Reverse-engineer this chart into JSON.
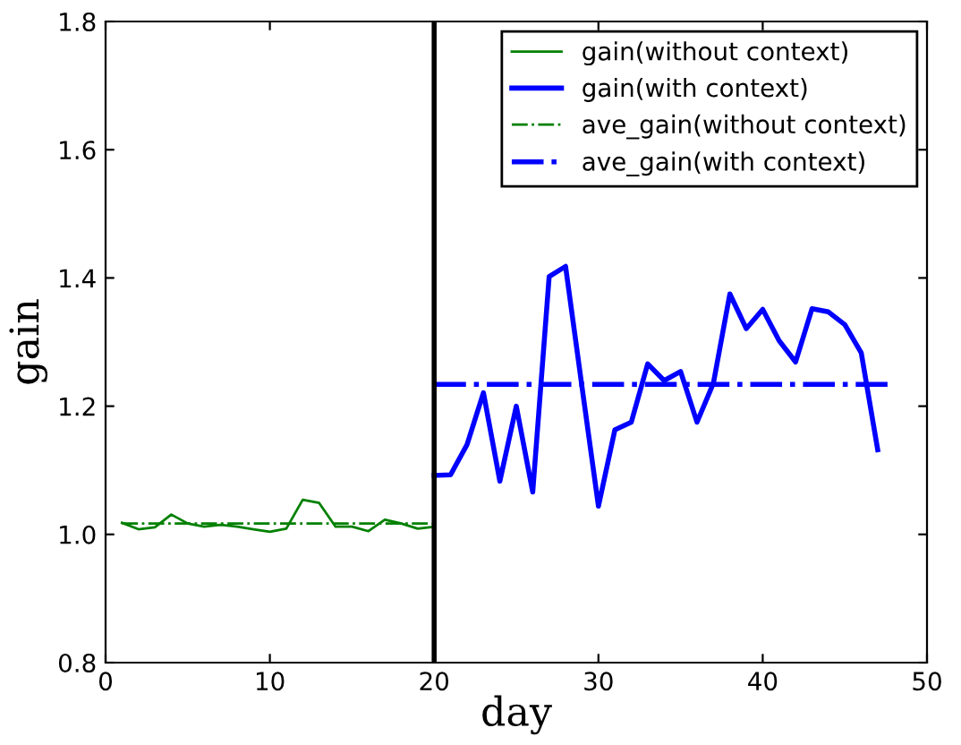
{
  "chart_data": {
    "type": "line",
    "xlabel": "day",
    "ylabel": "gain",
    "xlim": [
      0,
      50
    ],
    "xticks": [
      0,
      10,
      20,
      30,
      40,
      50
    ],
    "ylim": [
      0.8,
      1.8
    ],
    "yticks": [
      {
        "value": 0.8,
        "label": "0.8"
      },
      {
        "value": 1.0,
        "label": "1.0"
      },
      {
        "value": 1.2,
        "label": "1.2"
      },
      {
        "value": 1.4,
        "label": "1.4"
      },
      {
        "value": 1.6,
        "label": "1.6"
      },
      {
        "value": 1.8,
        "label": "1.8"
      }
    ],
    "legend": "top right",
    "grid": false,
    "ref_lines": [
      {
        "axis": "x",
        "value": 20,
        "color": "#000000"
      }
    ],
    "series": [
      {
        "name": "gain(without context)",
        "color": "#008000",
        "line_style": "solid",
        "x": [
          1,
          2,
          3,
          4,
          5,
          6,
          7,
          8,
          9,
          10,
          11,
          12,
          13,
          14,
          15,
          16,
          17,
          18,
          19,
          20
        ],
        "values": [
          1.018,
          1.008,
          1.011,
          1.031,
          1.017,
          1.012,
          1.015,
          1.012,
          1.008,
          1.004,
          1.009,
          1.054,
          1.049,
          1.012,
          1.012,
          1.005,
          1.023,
          1.017,
          1.009,
          1.012
        ]
      },
      {
        "name": "gain(with context)",
        "color": "#0000ff",
        "line_style": "solid",
        "x": [
          20,
          21,
          22,
          23,
          24,
          25,
          26,
          27,
          28,
          29,
          30,
          31,
          32,
          33,
          34,
          35,
          36,
          37,
          38,
          39,
          40,
          41,
          42,
          43,
          44,
          45,
          46,
          47
        ],
        "values": [
          1.092,
          1.093,
          1.14,
          1.221,
          1.083,
          1.2,
          1.066,
          1.402,
          1.418,
          1.23,
          1.044,
          1.163,
          1.175,
          1.266,
          1.24,
          1.254,
          1.175,
          1.236,
          1.375,
          1.321,
          1.351,
          1.302,
          1.269,
          1.352,
          1.347,
          1.327,
          1.283,
          1.132
        ]
      },
      {
        "name": "ave_gain(without context)",
        "color": "#008000",
        "line_style": "dashdot",
        "x": [
          1,
          20
        ],
        "values": [
          1.017,
          1.017
        ]
      },
      {
        "name": "ave_gain(with context)",
        "color": "#0000ff",
        "line_style": "dashdot",
        "x": [
          20,
          47.6
        ],
        "values": [
          1.234,
          1.234
        ]
      }
    ]
  }
}
